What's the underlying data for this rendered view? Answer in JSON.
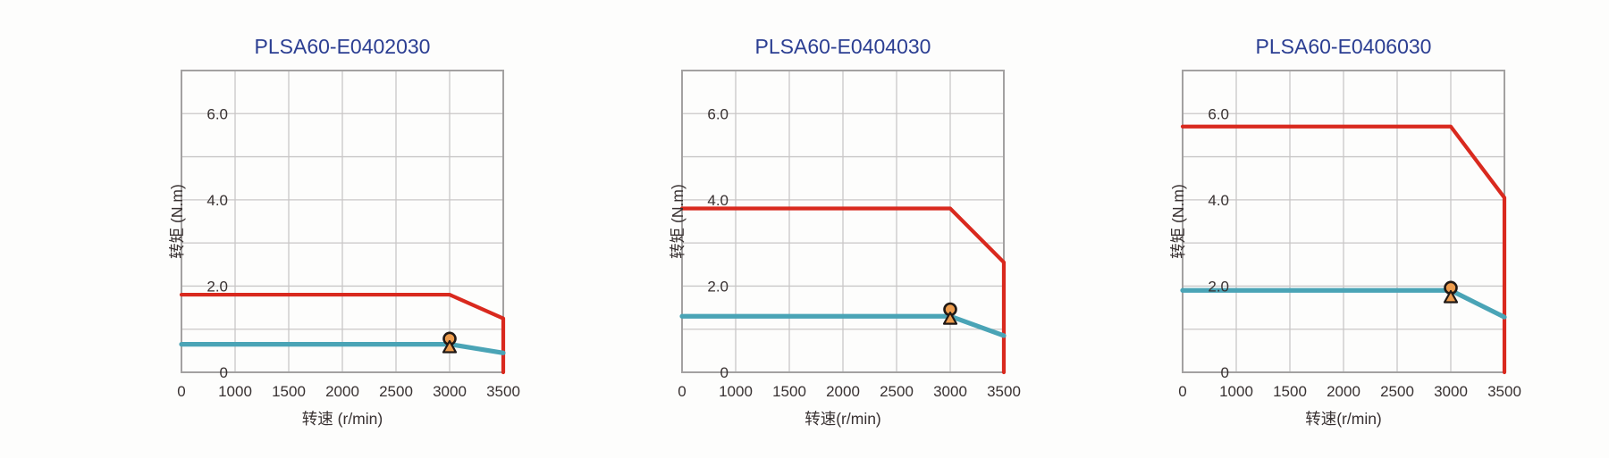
{
  "figure": {
    "background": "#fdfdfc",
    "description_colors": {
      "chart_title": "#2b3e92",
      "axis_text": "#383131",
      "grid": "#c9c7c7",
      "plot_border": "#a3a1a1",
      "peak_torque_line": "#d9291e",
      "rated_torque_line": "#4aa4b6",
      "marker_fill": "#ee9d4e",
      "marker_outline": "#201916"
    }
  },
  "chart_data": [
    {
      "type": "line",
      "title": "PLSA60-E0402030",
      "xlabel": "转速 (r/min)",
      "ylabel": "转矩 (N.m)",
      "x_tick_labels": [
        "0",
        "1000",
        "1500",
        "2000",
        "2500",
        "3000",
        "3500"
      ],
      "x_tick_values": [
        0,
        1000,
        1500,
        2000,
        2500,
        3000,
        3500
      ],
      "y_ticks": [
        {
          "value": 0,
          "label": "0"
        },
        {
          "value": 2,
          "label": "2.0"
        },
        {
          "value": 4,
          "label": "4.0"
        },
        {
          "value": 6,
          "label": "6.0"
        }
      ],
      "ylim": [
        0,
        7
      ],
      "y_grid_step": 1,
      "grid": true,
      "legend": "none",
      "series": [
        {
          "name": "peak-torque",
          "color": "#d9291e",
          "width": 4.2,
          "points": [
            [
              0,
              1.8
            ],
            [
              3000,
              1.8
            ],
            [
              3500,
              1.25
            ],
            [
              3500,
              0
            ]
          ]
        },
        {
          "name": "rated-torque",
          "color": "#4aa4b6",
          "width": 5.2,
          "points": [
            [
              0,
              0.65
            ],
            [
              3000,
              0.65
            ],
            [
              3500,
              0.45
            ]
          ]
        }
      ],
      "markers": [
        {
          "shape": "circle",
          "x": 3000,
          "y": 0.78
        },
        {
          "shape": "triangle",
          "x": 3000,
          "y": 0.58
        }
      ]
    },
    {
      "type": "line",
      "title": "PLSA60-E0404030",
      "xlabel": "转速(r/min)",
      "ylabel": "转矩 (N.m)",
      "x_tick_labels": [
        "0",
        "1000",
        "1500",
        "2000",
        "2500",
        "3000",
        "3500"
      ],
      "x_tick_values": [
        0,
        1000,
        1500,
        2000,
        2500,
        3000,
        3500
      ],
      "y_ticks": [
        {
          "value": 0,
          "label": "0"
        },
        {
          "value": 2,
          "label": "2.0"
        },
        {
          "value": 4,
          "label": "4.0"
        },
        {
          "value": 6,
          "label": "6.0"
        }
      ],
      "ylim": [
        0,
        7
      ],
      "y_grid_step": 1,
      "grid": true,
      "legend": "none",
      "series": [
        {
          "name": "peak-torque",
          "color": "#d9291e",
          "width": 4.2,
          "points": [
            [
              0,
              3.8
            ],
            [
              3000,
              3.8
            ],
            [
              3500,
              2.55
            ],
            [
              3500,
              0
            ]
          ]
        },
        {
          "name": "rated-torque",
          "color": "#4aa4b6",
          "width": 5.2,
          "points": [
            [
              0,
              1.3
            ],
            [
              3000,
              1.3
            ],
            [
              3500,
              0.85
            ]
          ]
        }
      ],
      "markers": [
        {
          "shape": "circle",
          "x": 3000,
          "y": 1.46
        },
        {
          "shape": "triangle",
          "x": 3000,
          "y": 1.24
        }
      ]
    },
    {
      "type": "line",
      "title": "PLSA60-E0406030",
      "xlabel": "转速(r/min)",
      "ylabel": "转矩 (N.m)",
      "x_tick_labels": [
        "0",
        "1000",
        "1500",
        "2000",
        "2500",
        "3000",
        "3500"
      ],
      "x_tick_values": [
        0,
        1000,
        1500,
        2000,
        2500,
        3000,
        3500
      ],
      "y_ticks": [
        {
          "value": 0,
          "label": "0"
        },
        {
          "value": 2,
          "label": "2.0"
        },
        {
          "value": 4,
          "label": "4.0"
        },
        {
          "value": 6,
          "label": "6.0"
        }
      ],
      "ylim": [
        0,
        7
      ],
      "y_grid_step": 1,
      "grid": true,
      "legend": "none",
      "series": [
        {
          "name": "peak-torque",
          "color": "#d9291e",
          "width": 4.2,
          "points": [
            [
              0,
              5.7
            ],
            [
              3000,
              5.7
            ],
            [
              3500,
              4.05
            ],
            [
              3500,
              0
            ]
          ]
        },
        {
          "name": "rated-torque",
          "color": "#4aa4b6",
          "width": 5.2,
          "points": [
            [
              0,
              1.9
            ],
            [
              3000,
              1.9
            ],
            [
              3500,
              1.28
            ]
          ]
        }
      ],
      "markers": [
        {
          "shape": "circle",
          "x": 3000,
          "y": 1.96
        },
        {
          "shape": "triangle",
          "x": 3000,
          "y": 1.74
        }
      ]
    }
  ]
}
